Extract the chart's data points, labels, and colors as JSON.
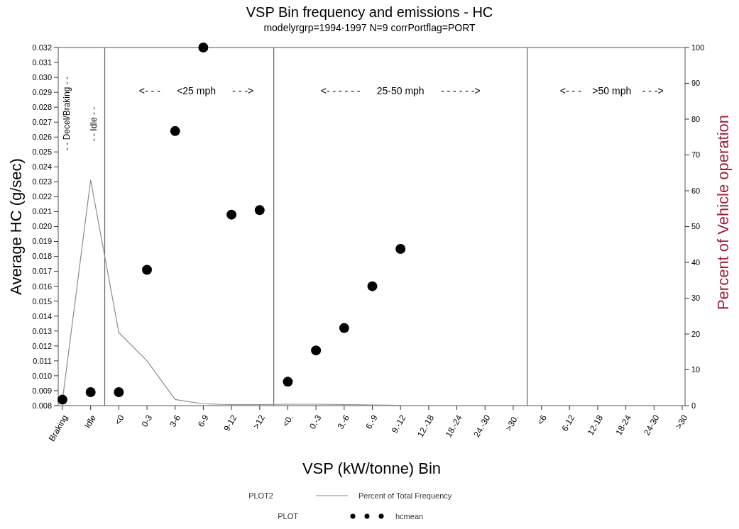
{
  "chart_data": {
    "type": "line",
    "title": "VSP Bin frequency and emissions - HC",
    "subtitle": "modelyrgrp=1994-1997 N=9 corrPortflag=PORT",
    "xlabel": "VSP (kW/tonne) Bin",
    "ylabel": "Average HC (g/sec)",
    "y2label": "Percent of Vehicle operation",
    "categories": [
      "Braking",
      "Idle",
      "<0",
      "0-3",
      "3-6",
      "6-9",
      "9-12",
      ">12",
      "<0.",
      "0.-3",
      "3.-6",
      "6.-9",
      "9.-12",
      "12.-18",
      "18.-24",
      "24.-30",
      ">30.",
      "<6",
      "6-12",
      "12-18",
      "18-24",
      "24-30",
      ">30"
    ],
    "series": [
      {
        "name": "Percent of Total Frequency",
        "axis": "y2",
        "color": "#8c8c8c",
        "line_style": "solid",
        "values": [
          1.5,
          63,
          20.4,
          12.5,
          1.7,
          0.5,
          0.3,
          0.3,
          0.4,
          0.4,
          0.3,
          0.2,
          0.1,
          null,
          null,
          null,
          null,
          null,
          null,
          null,
          null,
          null,
          null
        ]
      },
      {
        "name": "hcmean",
        "type": "scatter",
        "color": "#000000",
        "marker": "circle",
        "values": [
          0.0084,
          0.0089,
          0.0089,
          0.0171,
          0.0264,
          0.032,
          0.0208,
          0.0211,
          0.0096,
          0.0117,
          0.0132,
          0.016,
          0.0185,
          null,
          null,
          null,
          null,
          null,
          null,
          null,
          null,
          null,
          null
        ]
      }
    ],
    "ylim": [
      0.008,
      0.032
    ],
    "yticks": [
      0.008,
      0.009,
      {
        "value": 0.01,
        "label": "0.010"
      },
      0.011,
      0.012,
      0.013,
      0.014,
      0.015,
      0.016,
      0.017,
      0.018,
      0.019,
      {
        "value": 0.02,
        "label": "0.020"
      },
      0.021,
      0.022,
      0.023,
      0.024,
      0.025,
      0.026,
      0.027,
      0.028,
      0.029,
      {
        "value": 0.03,
        "label": "0.030"
      },
      0.031,
      0.032
    ],
    "y2lim": [
      0,
      100
    ],
    "y2ticks": [
      0,
      10,
      20,
      30,
      40,
      50,
      60,
      70,
      80,
      90,
      100
    ],
    "annotations": [
      "- - Decel/Braking - -",
      "- - Idle - -",
      "<- - -      <25 mph      - - ->",
      "<- - - - - -      25-50 mph      - - - - - ->",
      "<- - -    >50 mph    - - ->",
      "PLOT2",
      "PLOT"
    ],
    "grid": false,
    "legend": "bottom"
  }
}
